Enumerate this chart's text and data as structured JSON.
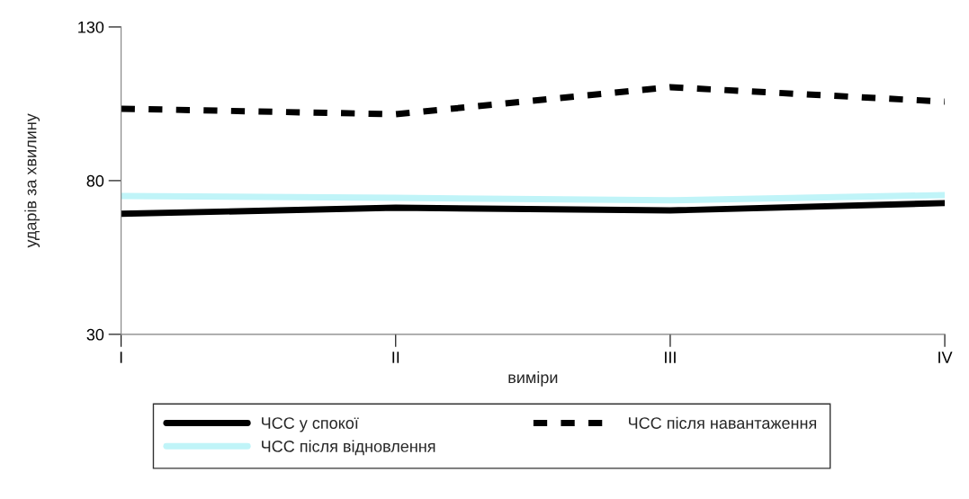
{
  "chart_data": {
    "type": "line",
    "xlabel": "виміри",
    "ylabel": "ударів за хвилину",
    "categories": [
      "I",
      "II",
      "III",
      "IV"
    ],
    "ylim": [
      30,
      130
    ],
    "yticks": [
      30,
      80,
      130
    ],
    "grid": false,
    "legend": "bottom",
    "series": [
      {
        "name": "ЧСС у спокої",
        "color": "#000000",
        "values": [
          69.2,
          71.2,
          70.3,
          72.7
        ],
        "line_style": "solid"
      },
      {
        "name": "ЧСС після навантаження",
        "color": "#000000",
        "values": [
          103.4,
          101.6,
          110.4,
          105.7
        ],
        "line_style": "dashed"
      },
      {
        "name": "ЧСС після відновлення",
        "color": "#c0f4f8",
        "values": [
          75,
          74.4,
          73.6,
          75.3
        ],
        "line_style": "solid"
      }
    ]
  }
}
